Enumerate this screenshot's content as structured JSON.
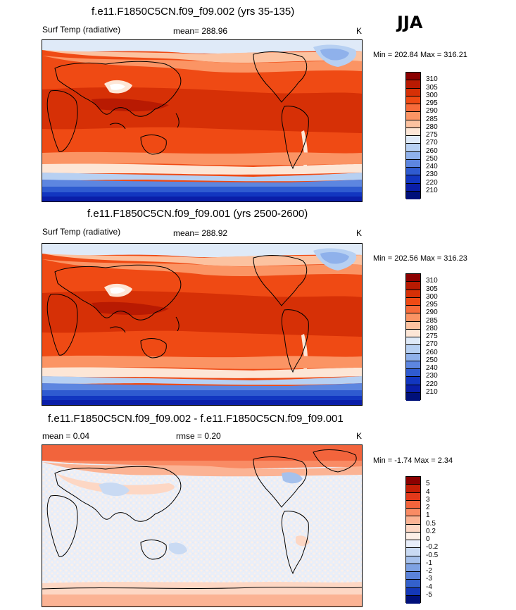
{
  "season": "JJA",
  "panels": [
    {
      "id": "panel-1",
      "title": "f.e11.F1850C5CN.f09_f09.002 (yrs 35-135)",
      "left_label": "Surf Temp (radiative)",
      "center_label": "mean= 288.96",
      "units": "K",
      "minmax": "Min = 202.84 Max = 316.21",
      "colorbar_labels": [
        "310",
        "305",
        "300",
        "295",
        "290",
        "285",
        "280",
        "275",
        "270",
        "260",
        "250",
        "240",
        "230",
        "220",
        "210"
      ],
      "colorbar_colors": [
        "#8b0000",
        "#b81a02",
        "#d63006",
        "#ef4a14",
        "#f76b3a",
        "#fb9464",
        "#fcc2a0",
        "#fde6d6",
        "#dfeaf8",
        "#b7d0f2",
        "#8fb1eb",
        "#5d86e0",
        "#2f5bd0",
        "#1236c0",
        "#0a1ea8",
        "#00107a"
      ],
      "map": "surface-temperature-map"
    },
    {
      "id": "panel-2",
      "title": "f.e11.F1850C5CN.f09_f09.001 (yrs 2500-2600)",
      "left_label": "Surf Temp (radiative)",
      "center_label": "mean= 288.92",
      "units": "K",
      "minmax": "Min = 202.56 Max = 316.23",
      "colorbar_labels": [
        "310",
        "305",
        "300",
        "295",
        "290",
        "285",
        "280",
        "275",
        "270",
        "260",
        "250",
        "240",
        "230",
        "220",
        "210"
      ],
      "colorbar_colors": [
        "#8b0000",
        "#b81a02",
        "#d63006",
        "#ef4a14",
        "#f76b3a",
        "#fb9464",
        "#fcc2a0",
        "#fde6d6",
        "#dfeaf8",
        "#b7d0f2",
        "#8fb1eb",
        "#5d86e0",
        "#2f5bd0",
        "#1236c0",
        "#0a1ea8",
        "#00107a"
      ],
      "map": "surface-temperature-map"
    },
    {
      "id": "panel-3",
      "title": "f.e11.F1850C5CN.f09_f09.002 - f.e11.F1850C5CN.f09_f09.001",
      "left_label": "mean =   0.04",
      "center_label": "rmse =   0.20",
      "units": "K",
      "minmax": "Min =  -1.74 Max =   2.34",
      "colorbar_labels": [
        "5",
        "4",
        "3",
        "2",
        "1",
        "0.5",
        "0.2",
        "0",
        "-0.2",
        "-0.5",
        "-1",
        "-2",
        "-3",
        "-4",
        "-5"
      ],
      "colorbar_colors": [
        "#8b0000",
        "#c41e06",
        "#e2391a",
        "#f2643c",
        "#f98b64",
        "#fbb394",
        "#fdd7c4",
        "#fdf0e8",
        "#e8eefa",
        "#c9daf3",
        "#a6c1ec",
        "#7ea2e3",
        "#5a82d9",
        "#3461cc",
        "#1438b8",
        "#00107a"
      ],
      "map": "difference-map"
    }
  ]
}
